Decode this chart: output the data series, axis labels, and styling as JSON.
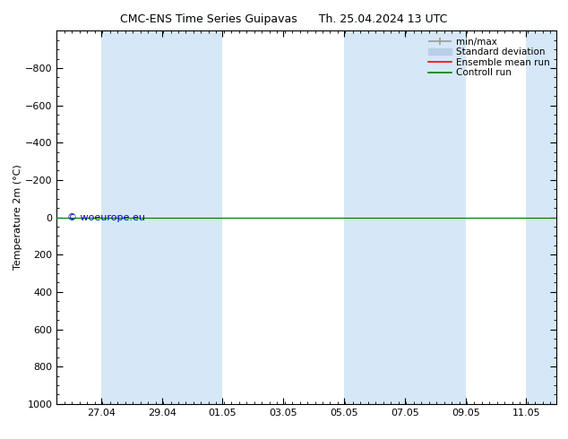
{
  "title_left": "CMC-ENS Time Series Guipavas",
  "title_right": "Th. 25.04.2024 13 UTC",
  "ylabel": "Temperature 2m (°C)",
  "ylim": [
    -1000,
    1000
  ],
  "yticks": [
    -800,
    -600,
    -400,
    -200,
    0,
    200,
    400,
    600,
    800,
    1000
  ],
  "shaded_color": "#d6e8f7",
  "shaded_bands_days": [
    [
      1.46,
      3.46
    ],
    [
      3.46,
      5.46
    ],
    [
      9.46,
      11.46
    ],
    [
      11.46,
      13.46
    ],
    [
      15.46,
      16.46
    ]
  ],
  "control_run_y": 0.0,
  "ensemble_mean_y": 0.0,
  "line_color_control": "#008000",
  "line_color_ensemble": "#ff0000",
  "minmax_color": "#999999",
  "stddev_color": "#b8cfe8",
  "watermark": "© woeurope.eu",
  "watermark_color": "#0000cc",
  "legend_labels": [
    "min/max",
    "Standard deviation",
    "Ensemble mean run",
    "Controll run"
  ],
  "legend_line_colors": [
    "#999999",
    "#b8cfe8",
    "#ff0000",
    "#008000"
  ],
  "bg_color": "#ffffff",
  "plot_bg": "#ffffff",
  "font_size": 8,
  "title_font_size": 9,
  "xtick_labels": [
    "27.04",
    "29.04",
    "01.05",
    "03.05",
    "05.05",
    "07.05",
    "09.05",
    "11.05"
  ],
  "xtick_days": [
    1.46,
    3.46,
    5.46,
    7.46,
    9.46,
    11.46,
    13.46,
    15.46
  ],
  "x_min": 0,
  "x_max": 16.46
}
